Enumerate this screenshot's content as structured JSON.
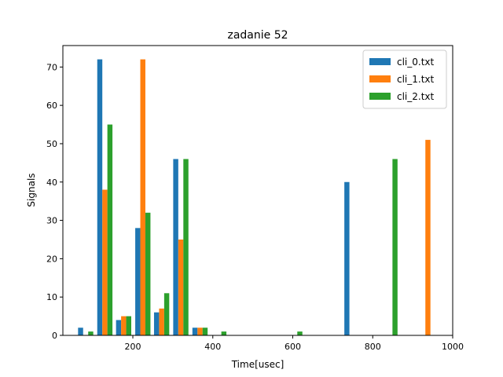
{
  "chart_data": {
    "type": "bar",
    "title": "zadanie 52",
    "xlabel": "Time[usec]",
    "ylabel": "Signals",
    "xlim": [
      25,
      1000
    ],
    "ylim": [
      0,
      75.6
    ],
    "xticks": [
      200,
      400,
      600,
      800,
      1000
    ],
    "yticks": [
      0,
      10,
      20,
      30,
      40,
      50,
      60,
      70
    ],
    "grid": false,
    "legend": "top-right",
    "bin_centers": [
      82,
      130,
      177,
      225,
      272,
      320,
      368,
      415,
      463,
      510,
      558,
      605,
      653,
      700,
      748,
      796,
      843,
      890,
      938
    ],
    "series": [
      {
        "name": "cli_0.txt",
        "color": "#1f77b4",
        "values": [
          2,
          72,
          4,
          28,
          6,
          46,
          2,
          0,
          0,
          0,
          0,
          0,
          0,
          0,
          40,
          0,
          0,
          0,
          0
        ]
      },
      {
        "name": "cli_1.txt",
        "color": "#ff7f0e",
        "values": [
          0,
          38,
          5,
          72,
          7,
          25,
          2,
          0,
          0,
          0,
          0,
          0,
          0,
          0,
          0,
          0,
          0,
          0,
          51
        ]
      },
      {
        "name": "cli_2.txt",
        "color": "#2ca02c",
        "values": [
          1,
          55,
          5,
          32,
          11,
          46,
          2,
          1,
          0,
          0,
          0,
          1,
          0,
          0,
          0,
          0,
          46,
          0,
          0
        ]
      }
    ]
  }
}
